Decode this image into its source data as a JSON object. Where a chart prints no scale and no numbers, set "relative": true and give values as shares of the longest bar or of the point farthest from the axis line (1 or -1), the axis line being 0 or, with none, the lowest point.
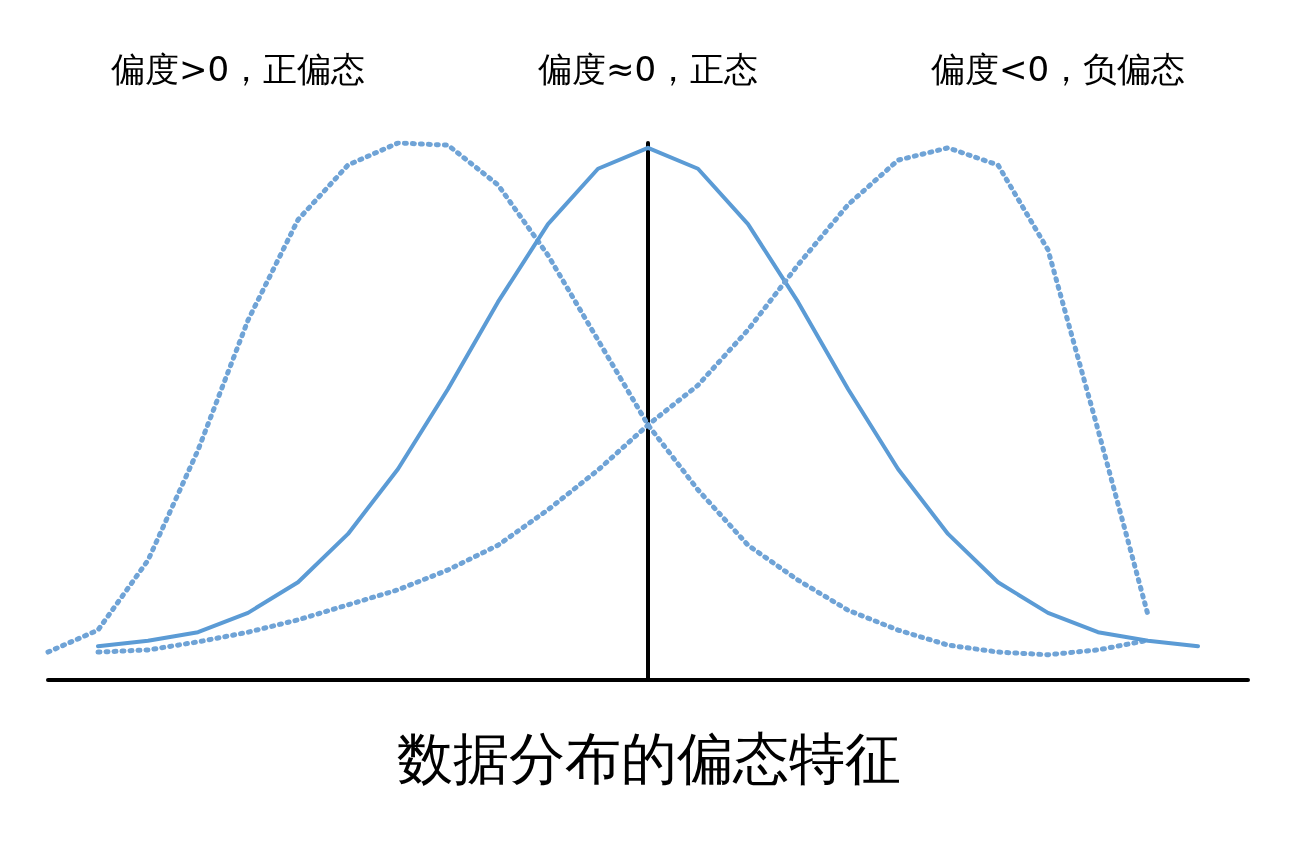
{
  "chart_data": {
    "type": "line",
    "relative": true,
    "title": "数据分布的偏态特征",
    "categories": [
      null,
      null,
      null,
      null,
      null,
      null,
      null,
      null,
      null,
      null,
      null,
      null,
      null,
      null,
      null,
      null,
      null,
      null,
      null,
      null,
      null,
      null,
      null,
      null,
      null
    ],
    "grid": false,
    "marker": "none",
    "annotations": [
      "偏度>0，正偏态",
      "偏度≈0，正态",
      "偏度<0，负偏态"
    ],
    "series": [
      {
        "color": "#6fa3d6",
        "line_style": "dotted",
        "values": [
          0.052,
          0.093,
          0.223,
          0.428,
          0.67,
          0.857,
          0.959,
          1,
          0.996,
          0.922,
          0.791,
          0.633,
          0.475,
          0.354,
          0.251,
          0.186,
          0.13,
          0.093,
          0.065,
          0.052,
          0.047,
          0.056,
          0.074,
          null,
          null
        ]
      },
      {
        "color": "#5b9bd5",
        "line_style": "solid",
        "values": [
          null,
          0.063,
          0.073,
          0.089,
          0.125,
          0.182,
          0.272,
          0.393,
          0.542,
          0.704,
          0.849,
          0.952,
          0.991,
          0.952,
          0.849,
          0.704,
          0.542,
          0.393,
          0.272,
          0.182,
          0.125,
          0.089,
          0.073,
          0.063,
          null
        ]
      },
      {
        "color": "#6fa3d6",
        "line_style": "dotted",
        "values": [
          null,
          0.052,
          0.056,
          0.071,
          0.089,
          0.112,
          0.14,
          0.168,
          0.205,
          0.251,
          0.317,
          0.391,
          0.475,
          0.549,
          0.652,
          0.773,
          0.885,
          0.968,
          0.991,
          0.959,
          0.801,
          0.466,
          0.121,
          null,
          null
        ]
      }
    ]
  }
}
